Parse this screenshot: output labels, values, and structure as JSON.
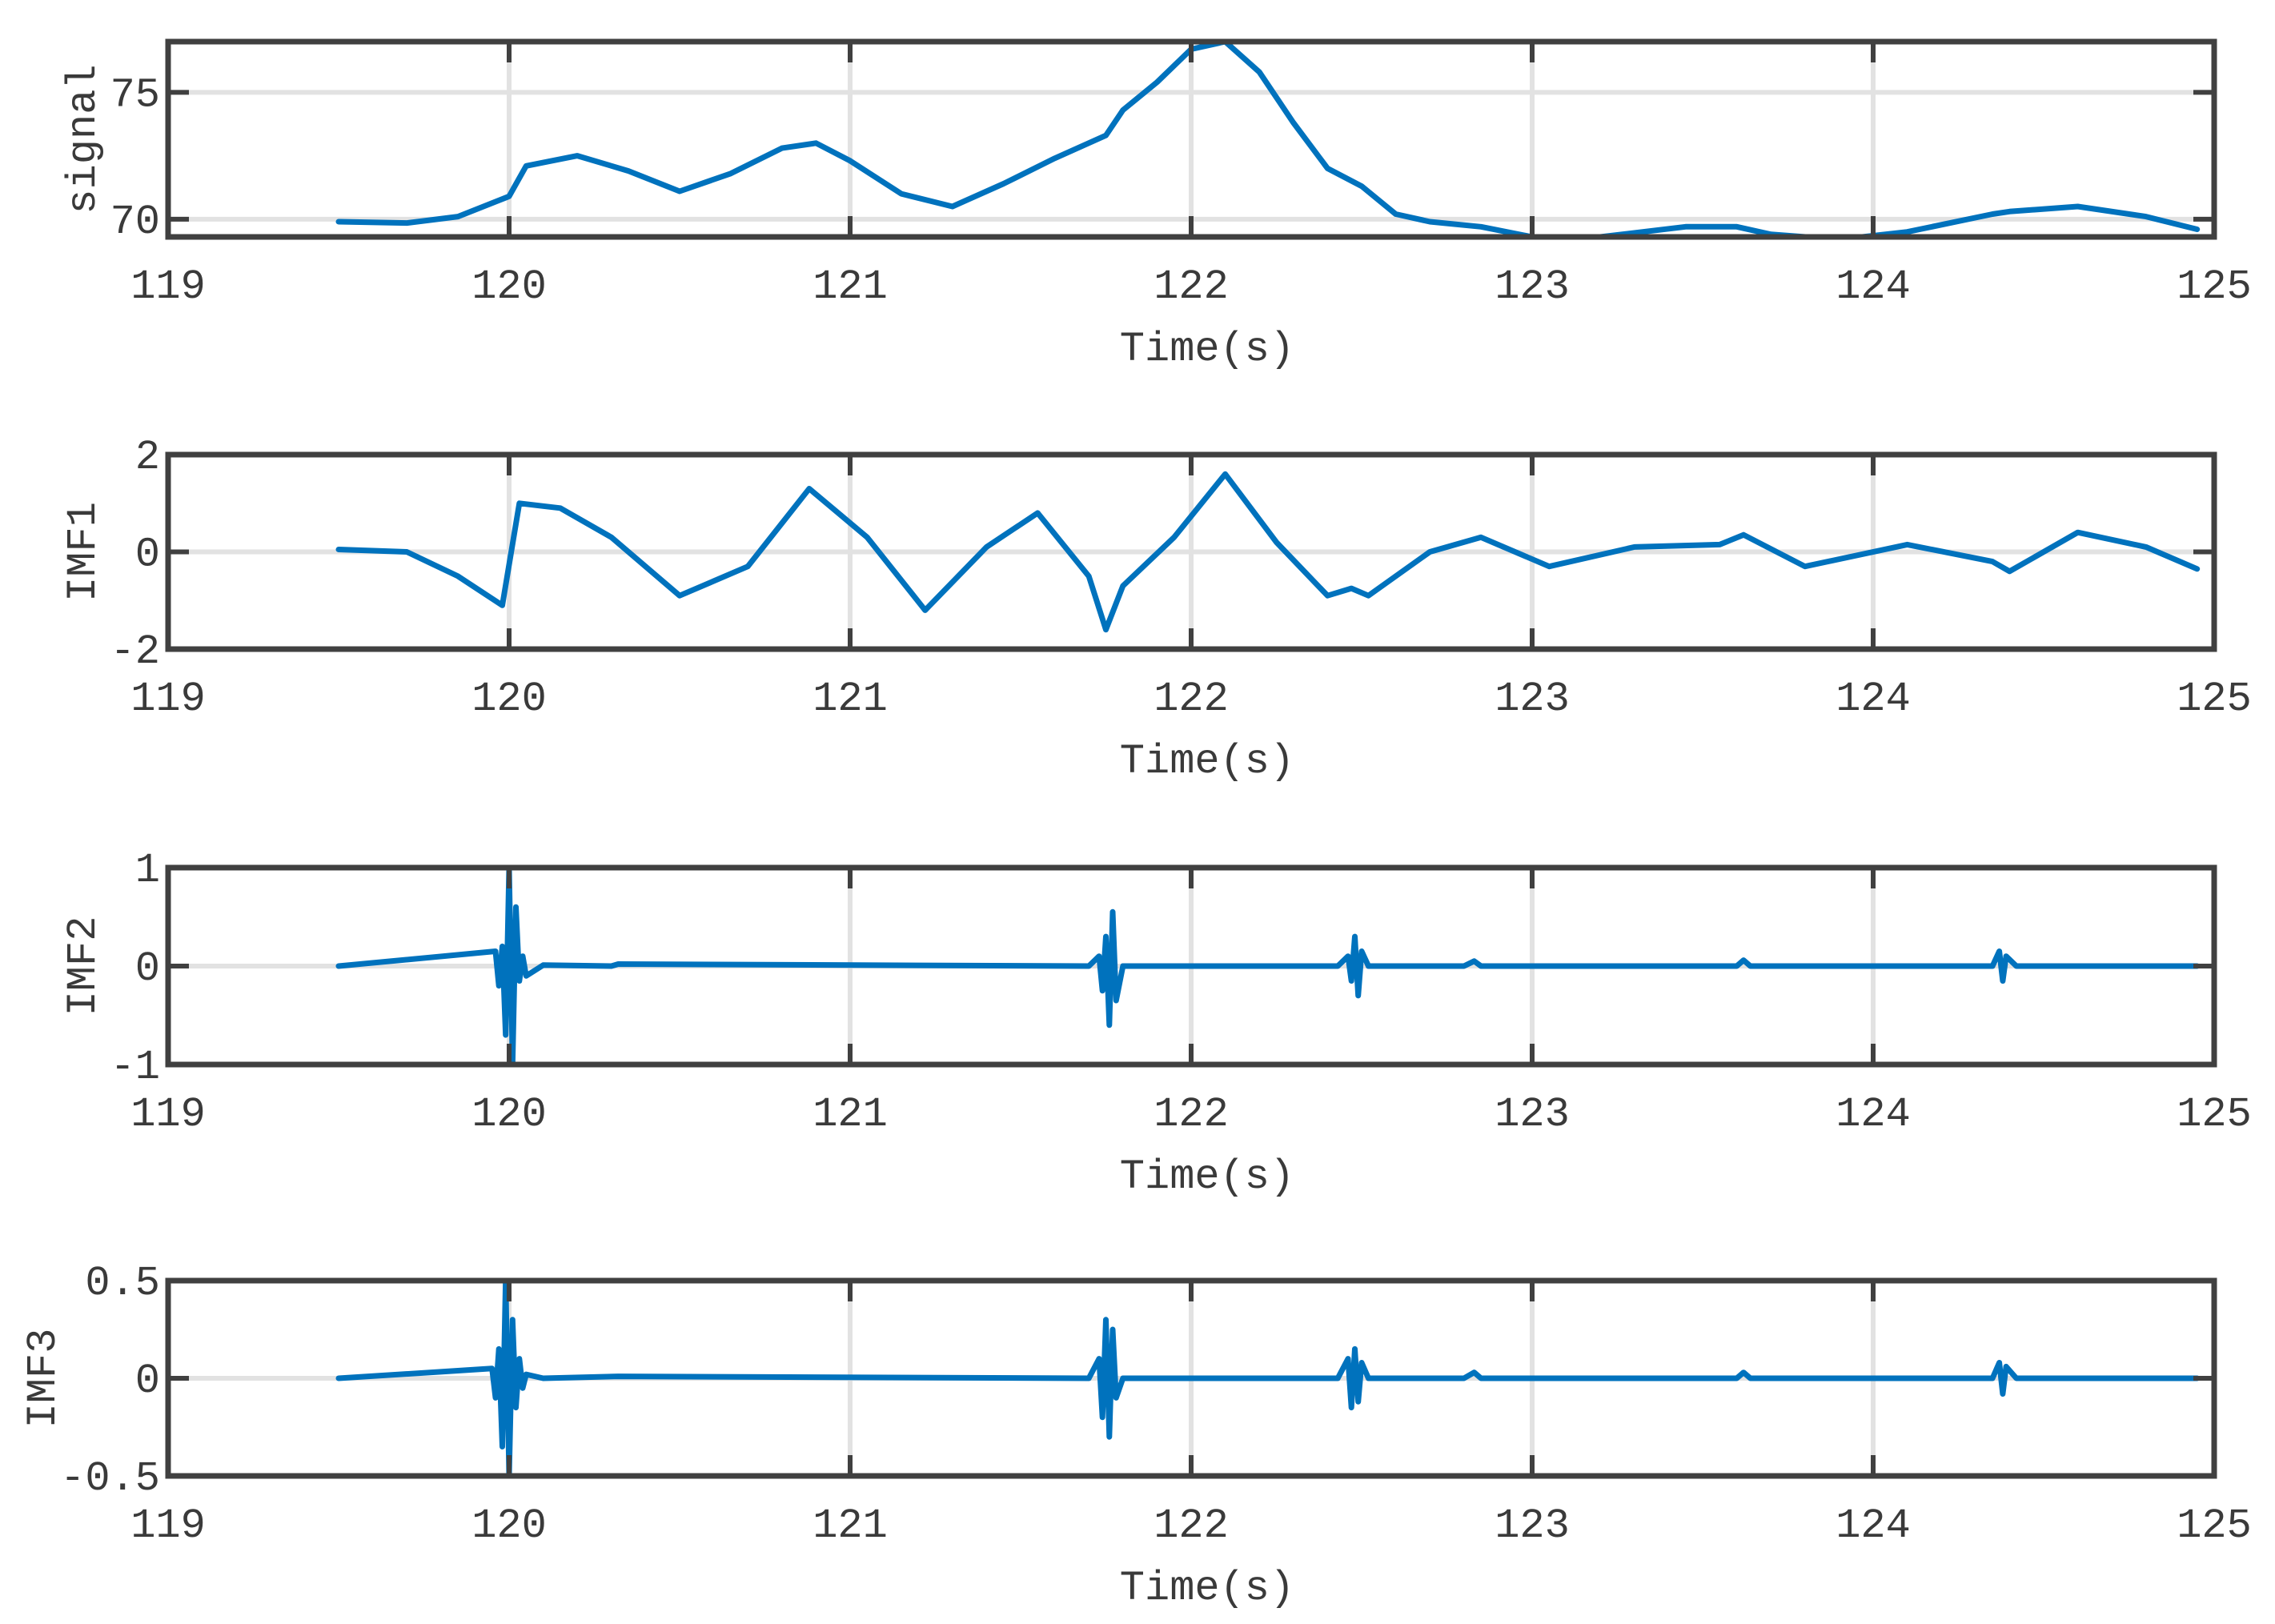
{
  "chart_data": [
    {
      "type": "line",
      "ylabel": "signal",
      "xlabel": "Time(s)",
      "xlim": [
        119,
        125
      ],
      "ylim": [
        69.3,
        77.0
      ],
      "xticks": [
        119,
        120,
        121,
        122,
        123,
        124,
        125
      ],
      "xtick_labels": [
        "119",
        "120",
        "121",
        "122",
        "123",
        "124",
        "125"
      ],
      "yticks": [
        70,
        75
      ],
      "ytick_labels": [
        "70",
        "75"
      ],
      "grid": true,
      "color": "#0072BD",
      "series": [
        {
          "x": [
            119.5,
            119.7,
            119.85,
            120.0,
            120.05,
            120.2,
            120.35,
            120.5,
            120.65,
            120.8,
            120.9,
            121.0,
            121.15,
            121.3,
            121.45,
            121.6,
            121.75,
            121.8,
            121.9,
            122.0,
            122.1,
            122.2,
            122.3,
            122.4,
            122.5,
            122.6,
            122.7,
            122.85,
            123.0,
            123.2,
            123.45,
            123.6,
            123.7,
            123.9,
            124.1,
            124.35,
            124.4,
            124.6,
            124.8,
            124.95
          ],
          "y": [
            69.9,
            69.85,
            70.1,
            70.9,
            72.1,
            72.5,
            71.9,
            71.1,
            71.8,
            72.8,
            73.0,
            72.3,
            71.0,
            70.5,
            71.4,
            72.4,
            73.3,
            74.3,
            75.4,
            76.7,
            77.0,
            75.8,
            73.8,
            72.0,
            71.3,
            70.2,
            69.9,
            69.7,
            69.3,
            69.3,
            69.7,
            69.7,
            69.4,
            69.2,
            69.5,
            70.2,
            70.3,
            70.5,
            70.1,
            69.6
          ]
        }
      ]
    },
    {
      "type": "line",
      "ylabel": "IMF1",
      "xlabel": "Time(s)",
      "xlim": [
        119,
        125
      ],
      "ylim": [
        -2,
        2
      ],
      "xticks": [
        119,
        120,
        121,
        122,
        123,
        124,
        125
      ],
      "xtick_labels": [
        "119",
        "120",
        "121",
        "122",
        "123",
        "124",
        "125"
      ],
      "yticks": [
        -2,
        0,
        2
      ],
      "ytick_labels": [
        "-2",
        "0",
        "2"
      ],
      "grid": true,
      "color": "#0072BD",
      "series": [
        {
          "x": [
            119.5,
            119.7,
            119.85,
            119.98,
            120.03,
            120.15,
            120.3,
            120.5,
            120.7,
            120.88,
            121.05,
            121.22,
            121.4,
            121.55,
            121.7,
            121.75,
            121.8,
            121.95,
            122.1,
            122.25,
            122.4,
            122.47,
            122.52,
            122.7,
            122.85,
            123.05,
            123.3,
            123.55,
            123.62,
            123.8,
            124.1,
            124.35,
            124.4,
            124.6,
            124.8,
            124.95
          ],
          "y": [
            0.05,
            0.0,
            -0.5,
            -1.1,
            1.0,
            0.9,
            0.3,
            -0.9,
            -0.3,
            1.3,
            0.3,
            -1.2,
            0.1,
            0.8,
            -0.5,
            -1.6,
            -0.7,
            0.3,
            1.6,
            0.2,
            -0.9,
            -0.75,
            -0.9,
            0.0,
            0.3,
            -0.3,
            0.1,
            0.15,
            0.35,
            -0.3,
            0.15,
            -0.2,
            -0.4,
            0.4,
            0.1,
            -0.35
          ]
        }
      ]
    },
    {
      "type": "line",
      "ylabel": "IMF2",
      "xlabel": "Time(s)",
      "xlim": [
        119,
        125
      ],
      "ylim": [
        -1,
        1
      ],
      "xticks": [
        119,
        120,
        121,
        122,
        123,
        124,
        125
      ],
      "xtick_labels": [
        "119",
        "120",
        "121",
        "122",
        "123",
        "124",
        "125"
      ],
      "yticks": [
        -1,
        0,
        1
      ],
      "ytick_labels": [
        "-1",
        "0",
        "1"
      ],
      "grid": true,
      "color": "#0072BD",
      "series": [
        {
          "x": [
            119.5,
            119.96,
            119.97,
            119.98,
            119.99,
            120.0,
            120.01,
            120.02,
            120.03,
            120.04,
            120.05,
            120.1,
            120.3,
            120.32,
            121.7,
            121.73,
            121.74,
            121.75,
            121.76,
            121.77,
            121.78,
            121.8,
            122.43,
            122.46,
            122.47,
            122.48,
            122.49,
            122.5,
            122.52,
            122.8,
            122.83,
            122.85,
            123.6,
            123.62,
            123.64,
            124.35,
            124.37,
            124.38,
            124.39,
            124.42,
            124.95
          ],
          "y": [
            0,
            0.15,
            -0.2,
            0.2,
            -0.7,
            1.0,
            -1.0,
            0.6,
            -0.15,
            0.1,
            -0.1,
            0.01,
            0,
            0.02,
            0,
            0.1,
            -0.25,
            0.3,
            -0.6,
            0.55,
            -0.35,
            0,
            0,
            0.1,
            -0.15,
            0.3,
            -0.3,
            0.15,
            0,
            0,
            0.05,
            0,
            0,
            0.06,
            0,
            0,
            0.15,
            -0.15,
            0.1,
            0,
            0
          ]
        }
      ]
    },
    {
      "type": "line",
      "ylabel": "IMF3",
      "xlabel": "Time(s)",
      "xlim": [
        119,
        125
      ],
      "ylim": [
        -0.5,
        0.5
      ],
      "xticks": [
        119,
        120,
        121,
        122,
        123,
        124,
        125
      ],
      "xtick_labels": [
        "119",
        "120",
        "121",
        "122",
        "123",
        "124",
        "125"
      ],
      "yticks": [
        -0.5,
        0,
        0.5
      ],
      "ytick_labels": [
        "-0.5",
        "0",
        "0.5"
      ],
      "grid": true,
      "color": "#0072BD",
      "series": [
        {
          "x": [
            119.5,
            119.95,
            119.96,
            119.97,
            119.98,
            119.99,
            120.0,
            120.01,
            120.02,
            120.03,
            120.04,
            120.05,
            120.1,
            120.32,
            121.7,
            121.73,
            121.74,
            121.75,
            121.76,
            121.77,
            121.78,
            121.8,
            122.43,
            122.46,
            122.47,
            122.48,
            122.49,
            122.5,
            122.52,
            122.8,
            122.83,
            122.85,
            123.6,
            123.62,
            123.64,
            124.35,
            124.37,
            124.38,
            124.39,
            124.42,
            124.95
          ],
          "y": [
            0,
            0.05,
            -0.1,
            0.15,
            -0.35,
            0.5,
            -0.5,
            0.3,
            -0.15,
            0.1,
            -0.05,
            0.02,
            0,
            0.01,
            0,
            0.1,
            -0.2,
            0.3,
            -0.3,
            0.25,
            -0.1,
            0,
            0,
            0.1,
            -0.15,
            0.15,
            -0.12,
            0.08,
            0,
            0,
            0.03,
            0,
            0,
            0.03,
            0,
            0,
            0.08,
            -0.08,
            0.06,
            0,
            0
          ]
        }
      ]
    }
  ]
}
